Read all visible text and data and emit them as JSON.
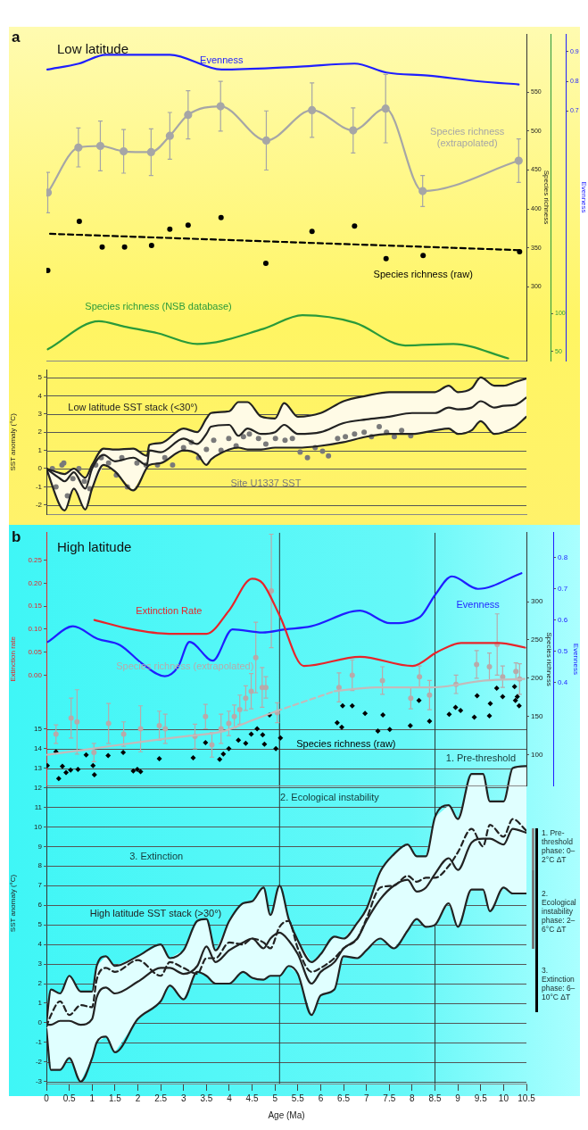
{
  "chart_data": [
    {
      "type": "line",
      "title": "Low latitude",
      "annotations": [
        "a"
      ],
      "xlim": [
        0,
        10.5
      ],
      "tick_labels": "y",
      "ylim": [
        205,
        625
      ],
      "yticks": [
        300,
        350,
        400,
        450,
        500,
        550
      ],
      "ylabel": "Species richness",
      "y2lim": [
        -0.14,
        0.96
      ],
      "y2ticks": [
        0.7,
        0.8,
        0.9
      ],
      "y2label": "Evenness",
      "y3lim": [
        38,
        470
      ],
      "y3ticks": [
        50,
        100
      ],
      "series": [
        {
          "type": "line",
          "name": "Evenness",
          "color": "#1f1fff",
          "axis": "y2",
          "x": [
            0.02,
            0.71,
            1.3,
            2.27,
            2.7,
            3.83,
            5.55,
            6.74,
            7.44,
            8.34,
            9.49,
            10.33
          ],
          "values": [
            0.84,
            0.86,
            0.89,
            0.89,
            0.89,
            0.84,
            0.85,
            0.86,
            0.83,
            0.82,
            0.8,
            0.79
          ]
        },
        {
          "type": "line",
          "name": "Species richness (extrapolated)",
          "color": "#a6a6a6",
          "marker": "circle",
          "x": [
            0.03,
            0.7,
            1.18,
            1.69,
            2.29,
            2.7,
            3.1,
            3.81,
            4.81,
            5.81,
            6.71,
            7.42,
            8.23,
            10.33
          ],
          "values": [
            421,
            479,
            481,
            474,
            473,
            494,
            521,
            532,
            488,
            527,
            501,
            529,
            423,
            462
          ],
          "errors": [
            26,
            25,
            32,
            28,
            30,
            30,
            31,
            32,
            38,
            35,
            29,
            44,
            20,
            28
          ]
        },
        {
          "type": "scatter",
          "name": "Species richness (raw)",
          "color": "#000000",
          "marker": "circle",
          "x": [
            0.03,
            0.72,
            1.22,
            1.71,
            2.3,
            2.7,
            3.1,
            3.82,
            4.8,
            5.81,
            6.74,
            7.43,
            8.24,
            10.35
          ],
          "values": [
            321,
            384,
            351,
            351,
            353,
            374,
            379,
            389,
            330,
            371,
            378,
            336,
            340,
            345
          ]
        },
        {
          "type": "line",
          "color": "#000000",
          "line_style": "dashed",
          "x": [
            0.08,
            10.35
          ],
          "values": [
            368,
            347
          ]
        },
        {
          "type": "line",
          "name": "Species richness (NSB database)",
          "color": "#2a9a3a",
          "axis": "y3",
          "x": [
            0.03,
            1.15,
            1.7,
            2.45,
            3.3,
            4.75,
            5.6,
            6.75,
            7.85,
            8.9,
            10.1
          ],
          "values": [
            53,
            90,
            83,
            74,
            60,
            80,
            98,
            88,
            58,
            60,
            41
          ]
        }
      ]
    },
    {
      "type": "line",
      "xlim": [
        0,
        10.5
      ],
      "tick_labels": "y",
      "ylim": [
        -2.5,
        5.4
      ],
      "yticks": [
        -2,
        -1,
        0,
        1,
        2,
        3,
        4,
        5
      ],
      "ylabel": "SST anomaly (°C)",
      "grid": "y",
      "series": [
        {
          "type": "line",
          "name": "Low latitude SST stack (<30°)",
          "color": "#222222",
          "x": [
            0,
            0.3,
            0.4,
            0.6,
            0.85,
            1.0,
            1.25,
            1.5,
            1.9,
            2.2,
            2.25,
            2.5,
            3.0,
            3.3,
            3.5,
            3.6,
            4.0,
            4.2,
            4.4,
            4.7,
            5.0,
            5.2,
            5.5,
            6.0,
            6.5,
            7.0,
            7.5,
            8.0,
            8.5,
            8.8,
            9.0,
            9.3,
            9.5,
            9.8,
            10.0,
            10.25,
            10.5
          ],
          "values": [
            0.0,
            -0.55,
            -0.7,
            -0.2,
            -1.1,
            0.0,
            0.75,
            0.4,
            0.6,
            0.2,
            1.0,
            0.9,
            1.65,
            1.35,
            1.9,
            2.3,
            2.4,
            1.8,
            2.2,
            1.9,
            2.0,
            2.4,
            1.9,
            2.0,
            2.5,
            2.7,
            2.85,
            3.05,
            3.05,
            3.35,
            3.25,
            3.35,
            3.7,
            3.35,
            3.45,
            3.5,
            3.9
          ],
          "lower": [
            0.0,
            -2.05,
            -2.3,
            -1.1,
            -2.25,
            -1.1,
            0.2,
            -0.15,
            -1.2,
            0.05,
            0.2,
            0.3,
            1.0,
            0.8,
            0.2,
            0.5,
            1.05,
            1.15,
            1.05,
            1.05,
            1.15,
            1.15,
            1.15,
            1.25,
            1.45,
            1.75,
            1.9,
            1.9,
            2.1,
            2.2,
            1.9,
            2.1,
            2.6,
            1.9,
            2.0,
            2.3,
            2.85
          ],
          "upper": [
            0.0,
            -0.25,
            -0.3,
            0.0,
            -0.5,
            0.2,
            1.1,
            1.05,
            1.1,
            0.7,
            1.3,
            1.4,
            2.2,
            2.0,
            2.75,
            3.05,
            3.15,
            3.65,
            3.65,
            2.85,
            2.75,
            3.6,
            2.85,
            3.05,
            3.7,
            4.0,
            4.2,
            4.2,
            4.2,
            4.55,
            4.2,
            4.4,
            5.0,
            4.55,
            4.55,
            4.75,
            4.95
          ]
        },
        {
          "type": "line",
          "color": "#222222",
          "x": [
            0,
            0.3,
            0.4,
            0.6,
            0.85,
            1.0,
            1.25,
            1.5,
            1.9,
            2.2,
            2.25,
            2.5,
            3.0,
            3.3,
            3.5,
            3.6,
            4.0,
            4.2,
            4.4,
            4.7,
            5.0,
            5.2,
            5.5,
            6.0,
            6.5,
            7.0,
            7.5,
            8.0,
            8.5,
            8.8,
            9.0,
            9.3,
            9.5,
            9.8,
            10.0,
            10.25,
            10.5
          ],
          "values": [
            0.0,
            -0.25,
            -0.3,
            0.0,
            -0.5,
            0.2,
            1.1,
            1.05,
            1.1,
            0.7,
            1.3,
            1.4,
            2.2,
            2.0,
            2.75,
            3.05,
            3.15,
            3.65,
            3.65,
            2.85,
            2.75,
            3.6,
            2.85,
            3.05,
            3.7,
            4.0,
            4.2,
            4.2,
            4.2,
            4.55,
            4.2,
            4.4,
            5.0,
            4.55,
            4.55,
            4.75,
            4.95
          ]
        },
        {
          "type": "line",
          "color": "#222222",
          "x": [
            0,
            0.3,
            0.4,
            0.6,
            0.85,
            1.0,
            1.25,
            1.5,
            1.9,
            2.2,
            2.25,
            2.5,
            3.0,
            3.3,
            3.5,
            3.6,
            4.0,
            4.2,
            4.4,
            4.7,
            5.0,
            5.2,
            5.5,
            6.0,
            6.5,
            7.0,
            7.5,
            8.0,
            8.5,
            8.8,
            9.0,
            9.3,
            9.5,
            9.8,
            10.0,
            10.25,
            10.5
          ],
          "values": [
            0.0,
            -2.05,
            -2.3,
            -1.1,
            -2.25,
            -1.1,
            0.2,
            -0.15,
            -1.2,
            0.05,
            0.2,
            0.3,
            1.0,
            0.8,
            0.2,
            0.5,
            1.05,
            1.15,
            1.05,
            1.05,
            1.15,
            1.15,
            1.15,
            1.25,
            1.45,
            1.75,
            1.9,
            1.9,
            2.1,
            2.2,
            1.9,
            2.1,
            2.6,
            1.9,
            2.0,
            2.3,
            2.85
          ]
        },
        {
          "type": "scatter",
          "name": "Site U1337 SST",
          "color": "#7a7a7a",
          "marker": "circle",
          "x": [
            0.13,
            0.21,
            0.34,
            0.38,
            0.46,
            0.58,
            0.71,
            0.83,
            0.95,
            1.08,
            1.2,
            1.36,
            1.53,
            1.65,
            1.77,
            1.98,
            2.18,
            2.43,
            2.59,
            2.76,
            3.0,
            3.17,
            3.33,
            3.5,
            3.66,
            3.82,
            3.99,
            4.15,
            4.31,
            4.44,
            4.64,
            4.8,
            5.01,
            5.22,
            5.38,
            5.55,
            5.71,
            5.88,
            6.04,
            6.17,
            6.37,
            6.54,
            6.74,
            6.95,
            7.11,
            7.28,
            7.44,
            7.61,
            7.77,
            7.97
          ],
          "values": [
            0.0,
            -1.0,
            0.2,
            0.3,
            -1.5,
            -0.55,
            0.0,
            -0.7,
            -1.1,
            0.2,
            0.6,
            0.3,
            -0.35,
            0.6,
            -1.0,
            0.3,
            0.2,
            0.2,
            0.6,
            0.2,
            1.15,
            1.45,
            0.6,
            1.05,
            1.55,
            1.0,
            1.65,
            1.25,
            1.75,
            1.9,
            1.65,
            1.35,
            1.65,
            1.55,
            1.65,
            0.9,
            0.6,
            1.15,
            0.95,
            0.7,
            1.65,
            1.75,
            1.9,
            2.0,
            1.75,
            2.3,
            2.0,
            1.75,
            2.1,
            1.8
          ]
        }
      ]
    },
    {
      "type": "line",
      "title": "High latitude",
      "annotations": [
        "b"
      ],
      "xlim": [
        0,
        10.5
      ],
      "tick_labels": "y",
      "ylim": [
        -0.24,
        0.31
      ],
      "yticks": [
        {
          "value": 0,
          "label": "0.00"
        },
        {
          "value": 0.05,
          "label": "0.05"
        },
        {
          "value": 0.1,
          "label": "0.10"
        },
        {
          "value": 0.15,
          "label": "0.15"
        },
        {
          "value": 0.2,
          "label": "0.20"
        },
        {
          "value": 0.25,
          "label": "0.25"
        }
      ],
      "ylabel": "Extinction rate",
      "y2lim": [
        60,
        390
      ],
      "y2ticks": [
        100,
        150,
        200,
        250,
        300
      ],
      "y2label": "Species richness",
      "y3lim": [
        0.07,
        0.88
      ],
      "y3ticks": [
        0.4,
        0.5,
        0.6,
        0.7,
        0.8
      ],
      "y3label": "Evenness",
      "ref_lines": [
        {
          "axis": "x",
          "value": 5.1
        },
        {
          "axis": "x",
          "value": 8.5
        }
      ],
      "series": [
        {
          "type": "line",
          "name": "Extinction Rate",
          "color": "#e8242a",
          "x": [
            1.05,
            1.86,
            2.68,
            3.5,
            3.99,
            4.5,
            4.73,
            5.1,
            5.63,
            6.86,
            8.01,
            8.54,
            9.07,
            9.9,
            10.47
          ],
          "values": [
            0.12,
            0.1,
            0.09,
            0.09,
            0.14,
            0.21,
            0.2,
            0.13,
            0.02,
            0.04,
            0.02,
            0.05,
            0.07,
            0.07,
            0.06
          ]
        },
        {
          "type": "line",
          "name": "Evenness",
          "color": "#1f1fff",
          "axis": "y3",
          "x": [
            0.03,
            0.58,
            1.12,
            1.61,
            2.1,
            2.59,
            2.88,
            3.13,
            3.64,
            4.07,
            4.73,
            5.22,
            5.79,
            6.86,
            7.52,
            8.17,
            8.5,
            8.87,
            9.44,
            10.39
          ],
          "values": [
            0.53,
            0.58,
            0.54,
            0.52,
            0.46,
            0.42,
            0.45,
            0.53,
            0.47,
            0.57,
            0.56,
            0.57,
            0.58,
            0.63,
            0.59,
            0.61,
            0.68,
            0.74,
            0.7,
            0.75
          ]
        },
        {
          "type": "line",
          "color": "#c4baba",
          "axis": "y2",
          "x": [
            0.02,
            1.0,
            2.08,
            3.0,
            3.88,
            4.5,
            5.03
          ],
          "values": [
            100,
            108,
            117,
            124,
            131,
            145,
            157
          ]
        },
        {
          "type": "line",
          "color": "#c4baba",
          "axis": "y2",
          "line_style": "dashed",
          "x": [
            5.03,
            6.3
          ],
          "values": [
            157,
            183
          ]
        },
        {
          "type": "line",
          "color": "#c4baba",
          "axis": "y2",
          "x": [
            6.3,
            7.2,
            8.42,
            9.6,
            10.46
          ],
          "values": [
            183,
            188,
            188,
            197,
            199
          ]
        },
        {
          "type": "scatter",
          "name": "Species richness (extrapolated)",
          "color": "#b8aaaa",
          "axis": "y2",
          "marker": "circle",
          "x": [
            0.21,
            0.54,
            0.67,
            1.04,
            1.36,
            1.69,
            2.06,
            2.47,
            2.6,
            3.25,
            3.48,
            3.62,
            3.82,
            3.99,
            4.11,
            4.23,
            4.36,
            4.48,
            4.58,
            4.72,
            4.8,
            4.92,
            5.05,
            6.4,
            6.69,
            7.35,
            7.97,
            8.16,
            8.38,
            8.96,
            9.41,
            9.69,
            9.86,
            9.98,
            10.27,
            10.35
          ],
          "values": [
            127,
            148,
            143,
            103,
            141,
            127,
            134,
            138,
            134,
            124,
            150,
            113,
            134,
            141,
            150,
            159,
            174,
            183,
            227,
            188,
            188,
            314,
            155,
            188,
            204,
            197,
            174,
            202,
            178,
            192,
            218,
            215,
            244,
            202,
            209,
            199
          ],
          "errors": [
            12,
            26,
            42,
            12,
            26,
            16,
            30,
            19,
            19,
            16,
            16,
            16,
            19,
            16,
            15,
            19,
            16,
            23,
            46,
            26,
            14,
            74,
            13,
            19,
            20,
            18,
            14,
            14,
            19,
            12,
            18,
            18,
            40,
            14,
            11,
            20
          ]
        },
        {
          "type": "scatter",
          "name": "Species richness (raw)",
          "color": "#000000",
          "axis": "y2",
          "marker": "diamond",
          "x": [
            0.02,
            0.21,
            0.27,
            0.35,
            0.43,
            0.53,
            0.69,
            0.87,
            1.02,
            1.05,
            1.35,
            1.68,
            1.9,
            1.99,
            2.06,
            2.47,
            3.21,
            3.48,
            3.79,
            3.87,
            3.99,
            4.2,
            4.36,
            4.48,
            4.61,
            4.73,
            4.77,
            4.88,
            5.02,
            5.12,
            6.36,
            6.46,
            6.48,
            6.69,
            6.97,
            7.25,
            7.36,
            7.51,
            7.96,
            8.15,
            8.38,
            8.81,
            8.95,
            9.06,
            9.36,
            9.42,
            9.69,
            9.71,
            9.85,
            9.98,
            10.24,
            10.26,
            10.3,
            10.34
          ],
          "values": [
            86,
            104,
            69,
            85,
            77,
            80,
            81,
            100,
            86,
            74,
            99,
            103,
            79,
            81,
            78,
            95,
            96,
            116,
            94,
            101,
            108,
            119,
            115,
            127,
            134,
            126,
            114,
            152,
            108,
            122,
            142,
            136,
            164,
            164,
            154,
            131,
            152,
            133,
            138,
            171,
            144,
            153,
            162,
            158,
            149,
            177,
            151,
            167,
            187,
            176,
            189,
            171,
            176,
            164
          ]
        }
      ]
    },
    {
      "type": "line",
      "xlim": [
        0,
        10.5
      ],
      "xticks": [
        0,
        0.5,
        1,
        1.5,
        2,
        2.5,
        3,
        3.5,
        4,
        4.5,
        5,
        5.5,
        6,
        6.5,
        7,
        7.5,
        8,
        8.5,
        9,
        9.5,
        10,
        10.5
      ],
      "xlabel": "Age (Ma)",
      "ylim": [
        -3.1,
        15.3
      ],
      "yticks": [
        -3,
        -2,
        -1,
        0,
        1,
        2,
        3,
        4,
        5,
        6,
        7,
        8,
        9,
        10,
        11,
        12,
        13,
        14,
        15
      ],
      "ylabel": "SST anomaly (°C)",
      "grid": "y",
      "ref_lines": [
        {
          "axis": "x",
          "value": 5.1
        },
        {
          "axis": "x",
          "value": 8.5
        }
      ],
      "annotations": [
        "1. Pre-threshold phase: 0–2°C ΔT",
        "2. Ecological instability phase: 2–6°C ΔT",
        "3. Extinction phase: 6–10°C ΔT",
        "1. Pre-threshold",
        "2. Ecological instability",
        "3. Extinction"
      ],
      "series": [
        {
          "type": "line",
          "name": "High latitude SST stack (>30°)",
          "color": "#222222",
          "x": [
            0,
            0.1,
            0.3,
            0.5,
            0.75,
            1.0,
            1.1,
            1.3,
            1.5,
            2.0,
            2.5,
            2.7,
            3.0,
            3.3,
            3.5,
            3.7,
            4.0,
            4.3,
            4.5,
            4.75,
            4.9,
            5.1,
            5.3,
            5.5,
            5.8,
            6.0,
            6.3,
            6.5,
            6.8,
            7.0,
            7.3,
            7.6,
            7.9,
            8.1,
            8.3,
            8.5,
            8.8,
            9.0,
            9.3,
            9.55,
            9.7,
            10.0,
            10.2,
            10.5
          ],
          "values": [
            -0.1,
            -0.1,
            0.1,
            0.1,
            -0.1,
            0.2,
            1.3,
            1.8,
            1.5,
            2.1,
            2.8,
            2.8,
            2.5,
            2.9,
            3.9,
            3.1,
            3.7,
            4.1,
            4.3,
            3.8,
            4.3,
            4.6,
            4.2,
            3.5,
            2.0,
            2.6,
            3.1,
            3.8,
            4.3,
            5.2,
            6.3,
            7.0,
            7.3,
            6.7,
            6.9,
            7.6,
            8.4,
            7.8,
            9.2,
            9.4,
            9.4,
            9.1,
            9.9,
            9.7
          ],
          "lower": [
            -0.3,
            -2.4,
            -2.4,
            -1.8,
            -3.0,
            -1.8,
            -1.0,
            -0.7,
            -1.5,
            0.2,
            1.1,
            1.9,
            1.2,
            2.6,
            2.4,
            2.0,
            2.0,
            2.6,
            2.3,
            2.2,
            2.4,
            2.4,
            2.9,
            2.5,
            0.4,
            1.4,
            1.7,
            3.4,
            3.3,
            3.7,
            4.3,
            3.8,
            4.7,
            5.3,
            4.9,
            5.0,
            6.1,
            4.9,
            6.8,
            6.8,
            5.7,
            6.9,
            6.6,
            6.6
          ],
          "upper": [
            0,
            1.7,
            1.5,
            2.4,
            1.6,
            1.6,
            2.9,
            3.4,
            2.9,
            3.4,
            4.0,
            3.3,
            3.7,
            5.2,
            5.3,
            3.7,
            5.2,
            6.1,
            6.2,
            6.9,
            5.5,
            7.0,
            5.3,
            4.2,
            3.1,
            3.5,
            4.4,
            4.3,
            5.1,
            5.8,
            7.7,
            8.6,
            9.1,
            8.5,
            8.5,
            10.5,
            11.1,
            10.4,
            12.7,
            12.7,
            11.3,
            11.3,
            13.0,
            13.1
          ]
        },
        {
          "type": "line",
          "color": "#222222",
          "x": [
            0,
            0.1,
            0.3,
            0.5,
            0.75,
            1.0,
            1.1,
            1.3,
            1.5,
            2.0,
            2.5,
            2.7,
            3.0,
            3.3,
            3.5,
            3.7,
            4.0,
            4.3,
            4.5,
            4.75,
            4.9,
            5.1,
            5.3,
            5.5,
            5.8,
            6.0,
            6.3,
            6.5,
            6.8,
            7.0,
            7.3,
            7.6,
            7.9,
            8.1,
            8.3,
            8.5,
            8.8,
            9.0,
            9.3,
            9.55,
            9.7,
            10.0,
            10.2,
            10.5
          ],
          "values": [
            0,
            1.7,
            1.5,
            2.4,
            1.6,
            1.6,
            2.9,
            3.4,
            2.9,
            3.4,
            4.0,
            3.3,
            3.7,
            5.2,
            5.3,
            3.7,
            5.2,
            6.1,
            6.2,
            6.9,
            5.5,
            7.0,
            5.3,
            4.2,
            3.1,
            3.5,
            4.4,
            4.3,
            5.1,
            5.8,
            7.7,
            8.6,
            9.1,
            8.5,
            8.5,
            10.5,
            11.1,
            10.4,
            12.7,
            12.7,
            11.3,
            11.3,
            13.0,
            13.1
          ]
        },
        {
          "type": "line",
          "color": "#222222",
          "x": [
            0,
            0.1,
            0.3,
            0.5,
            0.75,
            1.0,
            1.1,
            1.3,
            1.5,
            2.0,
            2.5,
            2.7,
            3.0,
            3.3,
            3.5,
            3.7,
            4.0,
            4.3,
            4.5,
            4.75,
            4.9,
            5.1,
            5.3,
            5.5,
            5.8,
            6.0,
            6.3,
            6.5,
            6.8,
            7.0,
            7.3,
            7.6,
            7.9,
            8.1,
            8.3,
            8.5,
            8.8,
            9.0,
            9.3,
            9.55,
            9.7,
            10.0,
            10.2,
            10.5
          ],
          "values": [
            -0.3,
            -2.4,
            -2.4,
            -1.8,
            -3.0,
            -1.8,
            -1.0,
            -0.7,
            -1.5,
            0.2,
            1.1,
            1.9,
            1.2,
            2.6,
            2.4,
            2.0,
            2.0,
            2.6,
            2.3,
            2.2,
            2.4,
            2.4,
            2.9,
            2.5,
            0.4,
            1.4,
            1.7,
            3.4,
            3.3,
            3.7,
            4.3,
            3.8,
            4.7,
            5.3,
            4.9,
            5.0,
            6.1,
            4.9,
            6.8,
            6.8,
            5.7,
            6.9,
            6.6,
            6.6
          ]
        },
        {
          "type": "line",
          "color": "#222222",
          "line_style": "dashed",
          "x": [
            0,
            0.1,
            0.3,
            0.5,
            0.75,
            1.0,
            1.1,
            1.3,
            1.5,
            2.0,
            2.5,
            2.7,
            3.0,
            3.3,
            3.5,
            3.7,
            4.0,
            4.3,
            4.5,
            4.75,
            4.9,
            5.1,
            5.3,
            5.5,
            5.8,
            6.0,
            6.3,
            6.5,
            6.8,
            7.0,
            7.3,
            7.6,
            7.9,
            8.1,
            8.3,
            8.5,
            8.8,
            9.0,
            9.3,
            9.55,
            9.7,
            10.0,
            10.2,
            10.5
          ],
          "values": [
            -0.2,
            0.4,
            1.1,
            0.4,
            0.9,
            0.8,
            2.2,
            2.8,
            2.6,
            3.2,
            2.4,
            3.1,
            2.8,
            2.5,
            3.3,
            3.3,
            4.1,
            4.0,
            4.3,
            4.1,
            3.8,
            4.9,
            5.2,
            3.8,
            2.6,
            2.8,
            3.3,
            3.8,
            4.3,
            5.3,
            6.9,
            7.0,
            7.5,
            7.2,
            7.4,
            7.4,
            8.0,
            8.7,
            9.9,
            9.0,
            10.1,
            9.5,
            10.4,
            9.8
          ]
        }
      ]
    }
  ]
}
